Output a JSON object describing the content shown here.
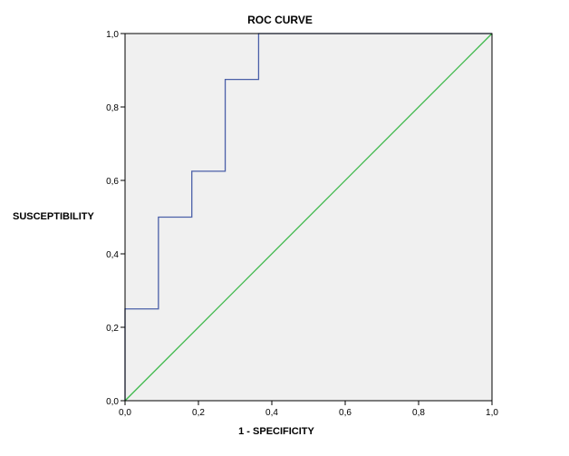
{
  "chart_data": {
    "type": "line",
    "title": "ROC CURVE",
    "xlabel": "1 - SPECIFICITY",
    "ylabel": "SUSCEPTIBILITY",
    "xlim": [
      0,
      1
    ],
    "ylim": [
      0,
      1
    ],
    "x_ticks": [
      "0,0",
      "0,2",
      "0,4",
      "0,6",
      "0,8",
      "1,0"
    ],
    "y_ticks": [
      "0,0",
      "0,2",
      "0,4",
      "0,6",
      "0,8",
      "1,0"
    ],
    "grid": false,
    "legend": "none",
    "series": [
      {
        "color": "#4a5fa8",
        "step": true,
        "points": [
          [
            0.0,
            0.0
          ],
          [
            0.0,
            0.25
          ],
          [
            0.091,
            0.25
          ],
          [
            0.091,
            0.5
          ],
          [
            0.182,
            0.5
          ],
          [
            0.182,
            0.625
          ],
          [
            0.273,
            0.625
          ],
          [
            0.273,
            0.875
          ],
          [
            0.364,
            0.875
          ],
          [
            0.364,
            1.0
          ],
          [
            1.0,
            1.0
          ]
        ]
      },
      {
        "color": "#3cb84a",
        "reference": true,
        "points": [
          [
            0.0,
            0.0
          ],
          [
            1.0,
            1.0
          ]
        ]
      }
    ],
    "colors": {
      "plot_background": "#f0f0f0",
      "frame": "#000000"
    }
  }
}
